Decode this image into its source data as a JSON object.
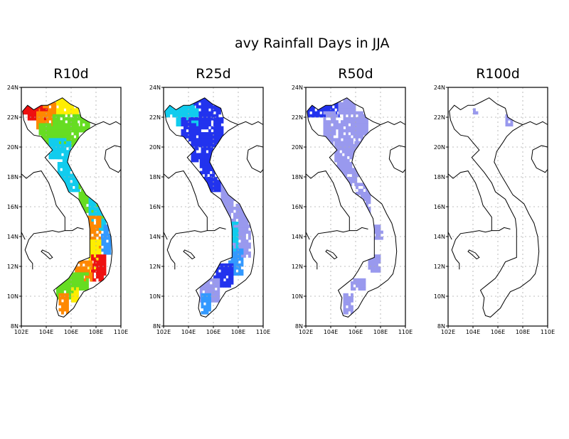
{
  "figure_title": "avy Rainfall Days in JJA",
  "panels": [
    {
      "title": "R10d"
    },
    {
      "title": "R25d"
    },
    {
      "title": "R50d"
    },
    {
      "title": "R100d"
    }
  ],
  "lat_ticks": [
    "24N",
    "22N",
    "20N",
    "18N",
    "16N",
    "14N",
    "12N",
    "10N",
    "8N"
  ],
  "lon_ticks": [
    "102E",
    "104E",
    "106E",
    "108E",
    "110E"
  ],
  "colors": {
    "coast": "#000000",
    "grid": "#aaaaaa",
    "red": "#ee1111",
    "orange": "#ff8800",
    "yellow": "#ffee00",
    "green": "#66dd22",
    "cyan": "#11ccee",
    "blue_light": "#3399ff",
    "blue": "#2233ee",
    "lavender": "#9999ee"
  }
}
